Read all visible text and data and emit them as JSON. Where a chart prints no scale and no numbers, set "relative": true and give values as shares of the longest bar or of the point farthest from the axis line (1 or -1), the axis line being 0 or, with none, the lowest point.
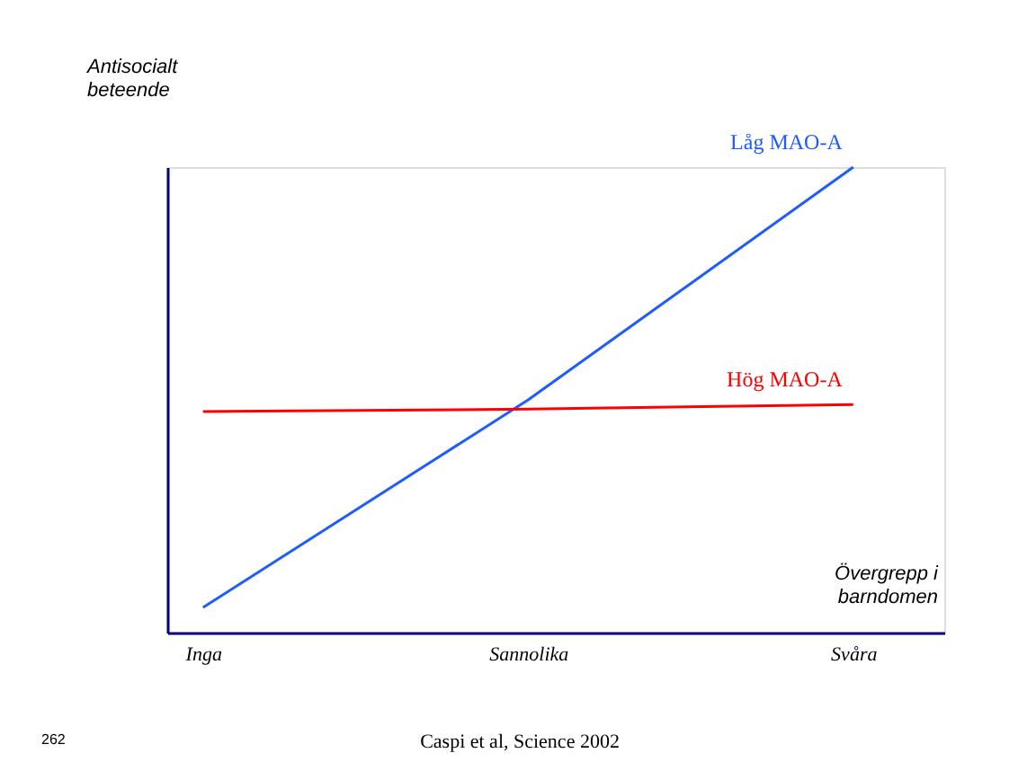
{
  "chart_data": {
    "type": "line",
    "relative": true,
    "xlabel": "Övergrepp i barndomen",
    "ylabel": "Antisocialt beteende",
    "categories": [
      "Inga",
      "Sannolika",
      "Svåra"
    ],
    "series": [
      {
        "name": "Låg MAO-A",
        "color": "#1f5cff",
        "values": [
          0.054,
          0.5,
          1
        ]
      },
      {
        "name": "Hög MAO-A",
        "color": "#ff0000",
        "values": [
          0.475,
          0.48,
          0.49
        ]
      }
    ],
    "legend": false,
    "grid": false,
    "annotations": [
      "262",
      "Caspi et al, Science 2002"
    ]
  }
}
